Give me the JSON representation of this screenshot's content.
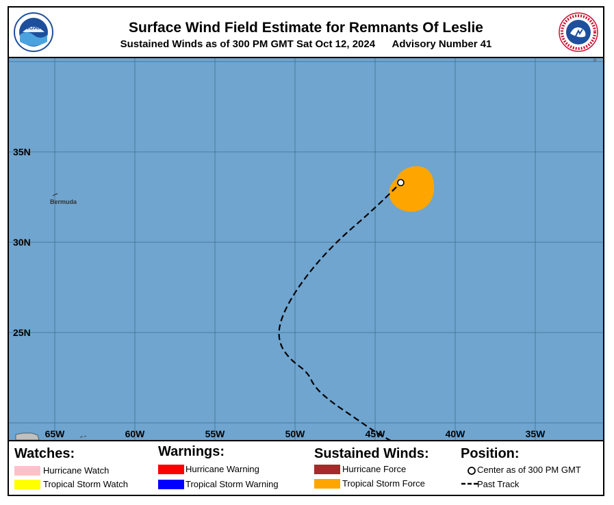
{
  "header": {
    "title": "Surface Wind Field Estimate for Remnants Of Leslie",
    "subtitle_time": "Sustained Winds as of 300 PM GMT Sat Oct 12, 2024",
    "subtitle_advisory": "Advisory Number 41",
    "left_logo_icon": "noaa-logo-icon",
    "right_logo_icon": "nws-logo-icon",
    "left_logo_text": "NOAA",
    "right_logo_text": "NATIONAL WEATHER SERVICE"
  },
  "map": {
    "ocean_color": "#6fa5cf",
    "grid_color": "#3f6f8f",
    "lat_labels": [
      "35N",
      "30N",
      "25N"
    ],
    "lon_labels": [
      "65W",
      "60W",
      "55W",
      "50W",
      "45W",
      "40W",
      "35W"
    ],
    "place_label": "Bermuda",
    "wind_field_color": "#ffa500",
    "storm_center": {
      "lat": 33.3,
      "lon": -43.4
    },
    "past_track": [
      {
        "lat": 19.0,
        "lon": -44.0
      },
      {
        "lat": 19.5,
        "lon": -45.0
      },
      {
        "lat": 20.3,
        "lon": -46.3
      },
      {
        "lat": 21.2,
        "lon": -47.8
      },
      {
        "lat": 22.0,
        "lon": -48.8
      },
      {
        "lat": 22.8,
        "lon": -49.2
      },
      {
        "lat": 23.5,
        "lon": -50.3
      },
      {
        "lat": 24.4,
        "lon": -51.0
      },
      {
        "lat": 25.5,
        "lon": -51.0
      },
      {
        "lat": 27.0,
        "lon": -50.2
      },
      {
        "lat": 28.7,
        "lon": -48.8
      },
      {
        "lat": 30.2,
        "lon": -47.2
      },
      {
        "lat": 31.5,
        "lon": -45.5
      },
      {
        "lat": 32.5,
        "lon": -44.3
      },
      {
        "lat": 33.3,
        "lon": -43.4
      }
    ]
  },
  "legend": {
    "watches": {
      "heading": "Watches:",
      "items": [
        {
          "label": "Hurricane Watch",
          "color": "#ffc0cb"
        },
        {
          "label": "Tropical Storm Watch",
          "color": "#ffff00"
        }
      ]
    },
    "warnings": {
      "heading": "Warnings:",
      "items": [
        {
          "label": "Hurricane Warning",
          "color": "#ff0000"
        },
        {
          "label": "Tropical Storm Warning",
          "color": "#0000ff"
        }
      ]
    },
    "winds": {
      "heading": "Sustained Winds:",
      "items": [
        {
          "label": "Hurricane Force",
          "color": "#a52a2a"
        },
        {
          "label": "Tropical Storm Force",
          "color": "#ffa500"
        }
      ]
    },
    "position": {
      "heading": "Position:",
      "center_label": "Center as of 300 PM GMT",
      "track_label": "Past Track"
    }
  }
}
